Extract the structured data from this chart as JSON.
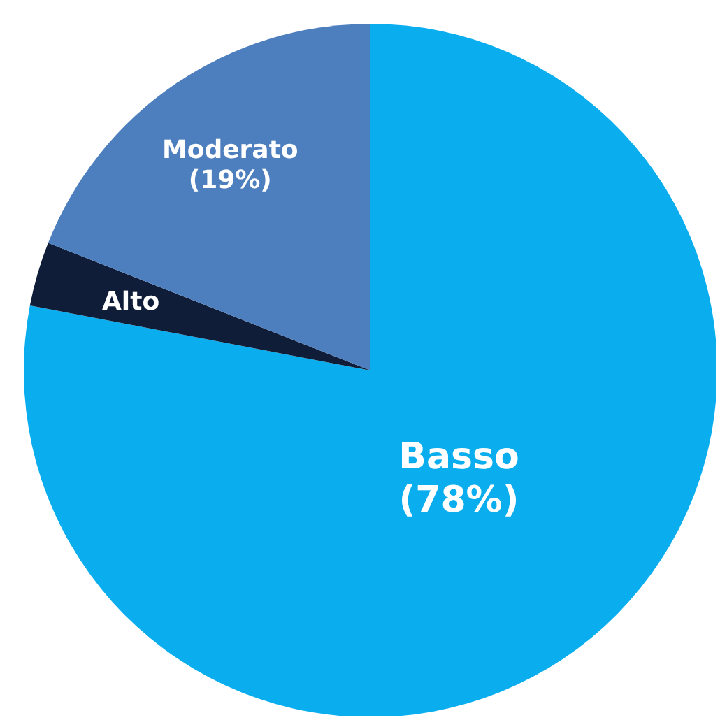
{
  "chart_data": {
    "type": "pie",
    "categories": [
      "Basso",
      "Alto",
      "Moderato"
    ],
    "values": [
      78,
      3,
      19
    ],
    "colors": [
      "#0aaeee",
      "#0f1d38",
      "#4d7fbf"
    ],
    "value_labels": [
      "(78%)",
      null,
      "(19%)"
    ],
    "legend": false
  }
}
